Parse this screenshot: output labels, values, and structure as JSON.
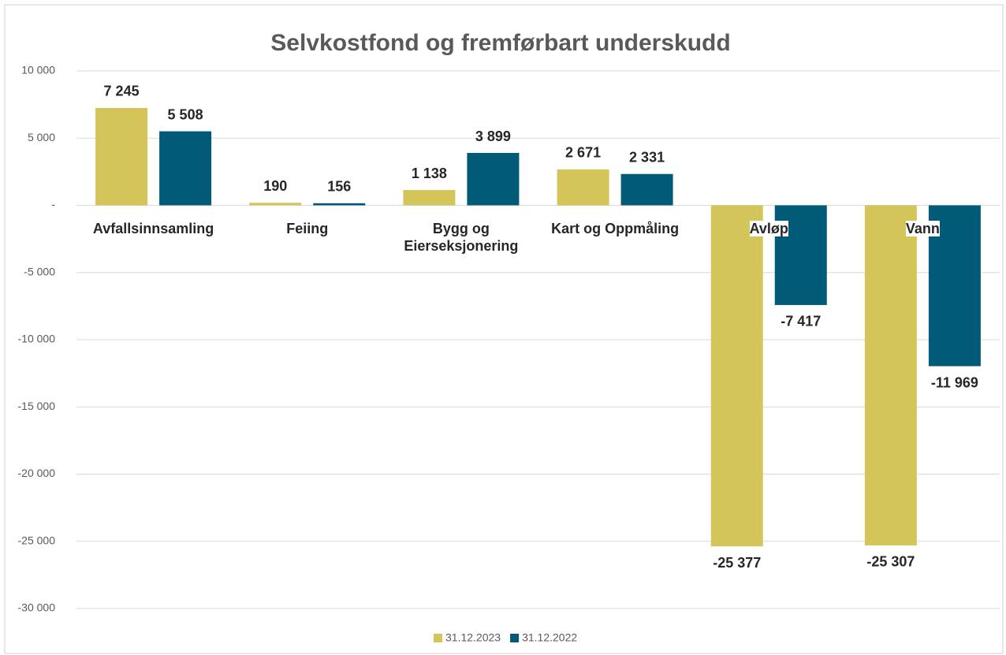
{
  "chart_data": {
    "type": "bar",
    "title": "Selvkostfond og fremførbart underskudd",
    "categories": [
      "Avfallsinnsamling",
      "Feiing",
      "Bygg og Eierseksjonering",
      "Kart og Oppmåling",
      "Avløp",
      "Vann"
    ],
    "series": [
      {
        "name": "31.12.2023",
        "color": "#d4c55a",
        "values": [
          7245,
          190,
          1138,
          2671,
          -25377,
          -25307
        ],
        "value_labels": [
          "7 245",
          "190",
          "1 138",
          "2 671",
          "-25 377",
          "-25 307"
        ]
      },
      {
        "name": "31.12.2022",
        "color": "#005a78",
        "values": [
          5508,
          156,
          3899,
          2331,
          -7417,
          -11969
        ],
        "value_labels": [
          "5 508",
          "156",
          "3 899",
          "2 331",
          "-7 417",
          "-11 969"
        ]
      }
    ],
    "ylim": [
      -30000,
      10000
    ],
    "yticks": [
      {
        "value": -30000,
        "label": "-30 000"
      },
      {
        "value": -25000,
        "label": "-25 000"
      },
      {
        "value": -20000,
        "label": "-20 000"
      },
      {
        "value": -15000,
        "label": "-15 000"
      },
      {
        "value": -10000,
        "label": "-10 000"
      },
      {
        "value": -5000,
        "label": "-5 000"
      },
      {
        "value": 0,
        "label": "-"
      },
      {
        "value": 5000,
        "label": "5 000"
      },
      {
        "value": 10000,
        "label": "10 000"
      }
    ],
    "grid": true,
    "legend": "bottom"
  }
}
